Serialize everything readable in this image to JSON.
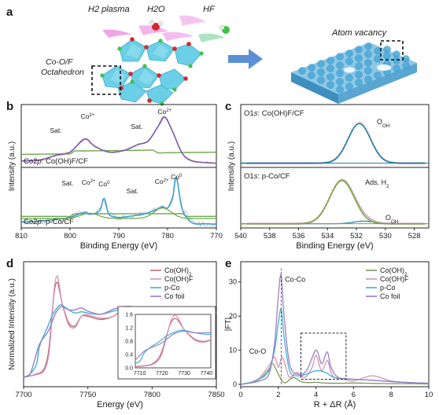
{
  "panel_a": {
    "letter": "a",
    "labels": {
      "plasma": "H2 plasma",
      "h2o": "H2O",
      "hf": "HF",
      "octa_line1": "Co-O/F",
      "octa_line2": "Octahedron",
      "vacancy": "Atom vacancy"
    },
    "colors": {
      "octahedron": "#5ecbe6",
      "oxygen": "#d7262b",
      "fluorine": "#3ec24b",
      "sphere": "#4aa9da",
      "arrow": "#5b8fd6",
      "plasma": "#e35ad3",
      "hf": "#47c47a"
    }
  },
  "chart_data": [
    {
      "panel": "b",
      "type": "line",
      "xlabel": "Binding Energy (eV)",
      "ylabel": "Intensity (a.u.)",
      "xlim": [
        810,
        770
      ],
      "xticks": [
        810,
        800,
        790,
        780,
        770
      ],
      "subplots": [
        {
          "label_prefix": "Co2",
          "label_italic": "p",
          "label_suffix": ": Co(OH)F/CF",
          "peak_labels": [
            "Sat.",
            "Co",
            "Sat.",
            "Co"
          ],
          "peak_sups": [
            "",
            "2+",
            "",
            "2+"
          ],
          "peak_positions": [
            802.9,
            796.4,
            786.3,
            780.6
          ],
          "series": [
            {
              "name": "fit",
              "color": "#7e58a8",
              "x": [
                810,
                806,
                803,
                800,
                797,
                795,
                792,
                789,
                786,
                784,
                782,
                780.6,
                779,
                777,
                775,
                772,
                770
              ],
              "y": [
                0.06,
                0.08,
                0.16,
                0.22,
                0.46,
                0.33,
                0.22,
                0.25,
                0.36,
                0.42,
                0.68,
                0.86,
                0.6,
                0.2,
                0.06,
                0.03,
                0.02
              ]
            }
          ]
        },
        {
          "label_prefix": "Co2",
          "label_italic": "p",
          "label_suffix": ": p-Co/CF",
          "peak_labels": [
            "Sat.",
            "Co",
            "Co",
            "Sat.",
            "Co",
            "Co"
          ],
          "peak_sups": [
            "",
            "2+",
            "0",
            "",
            "2+",
            "0"
          ],
          "peak_positions": [
            800.5,
            796.2,
            793.0,
            787.2,
            781.2,
            778.2
          ],
          "series": [
            {
              "name": "fit",
              "color": "#3b9fd1",
              "x": [
                810,
                806,
                803,
                800,
                797,
                796,
                794,
                793,
                792,
                790,
                788,
                785,
                782,
                781,
                780,
                779,
                778.2,
                777,
                775,
                772,
                770
              ],
              "y": [
                0.05,
                0.07,
                0.1,
                0.14,
                0.24,
                0.2,
                0.26,
                0.5,
                0.2,
                0.14,
                0.16,
                0.2,
                0.3,
                0.34,
                0.32,
                0.5,
                0.9,
                0.3,
                0.04,
                0.02,
                0.01
              ]
            }
          ]
        }
      ]
    },
    {
      "panel": "c",
      "type": "line",
      "xlabel": "Binding Energy (eV)",
      "ylabel": "Intensity (a.u.)",
      "xlim": [
        540,
        527
      ],
      "xticks": [
        540,
        538,
        536,
        534,
        532,
        530,
        528
      ],
      "subplots": [
        {
          "label_prefix": "O1",
          "label_italic": "s",
          "label_suffix": ": Co(OH)F/CF",
          "peak_labels": [
            "O"
          ],
          "peak_subs": [
            "OH"
          ],
          "peak_positions": [
            531.8
          ],
          "series": [
            {
              "name": "fit",
              "color": "#1f7fa0",
              "x": [
                540,
                536,
                534,
                533,
                532,
                531,
                530,
                529,
                528,
                527
              ],
              "y": [
                0.02,
                0.04,
                0.14,
                0.44,
                0.74,
                0.56,
                0.16,
                0.05,
                0.03,
                0.02
              ]
            }
          ]
        },
        {
          "label_prefix": "O1",
          "label_italic": "s",
          "label_suffix": ": p-Co/CF",
          "peak_labels": [
            "Ads. H",
            "O"
          ],
          "peak_subs": [
            "2",
            "OH"
          ],
          "peak_positions": [
            533.0,
            531.5
          ],
          "series": [
            {
              "name": "fit",
              "color": "#7aa63a",
              "x": [
                540,
                536,
                535,
                534,
                533,
                532,
                531,
                530,
                528,
                527
              ],
              "y": [
                0.02,
                0.05,
                0.2,
                0.55,
                0.85,
                0.55,
                0.2,
                0.06,
                0.02,
                0.02
              ]
            }
          ]
        }
      ]
    },
    {
      "panel": "d",
      "type": "line",
      "xlabel": "Energy (eV)",
      "ylabel": "Normalized Intensity (a.u.)",
      "xlim": [
        7700,
        7850
      ],
      "xticks": [
        7700,
        7750,
        7800,
        7850
      ],
      "legend_position": "top-right",
      "series": [
        {
          "name": "Co(OH)",
          "name_sub": "2",
          "color": "#c06b6b",
          "x": [
            7700,
            7705,
            7710,
            7715,
            7718,
            7720,
            7722,
            7724,
            7726,
            7728,
            7730,
            7735,
            7740,
            7745,
            7750,
            7760,
            7770,
            7780,
            7790,
            7800,
            7810,
            7820,
            7830,
            7840,
            7850
          ],
          "y": [
            0.0,
            0.02,
            0.05,
            0.1,
            0.25,
            0.5,
            0.95,
            1.35,
            1.48,
            1.35,
            1.15,
            0.85,
            0.8,
            0.95,
            0.95,
            0.9,
            0.95,
            1.08,
            1.05,
            1.0,
            1.03,
            1.05,
            1.0,
            1.0,
            1.01
          ]
        },
        {
          "name": "Co(OH)F",
          "name_sub": "",
          "color": "#d393b8",
          "x": [
            7700,
            7705,
            7710,
            7715,
            7718,
            7720,
            7722,
            7724,
            7726,
            7728,
            7730,
            7735,
            7740,
            7745,
            7750,
            7760,
            7770,
            7780,
            7790,
            7800,
            7810,
            7820,
            7830,
            7840,
            7850
          ],
          "y": [
            0.0,
            0.02,
            0.04,
            0.08,
            0.2,
            0.42,
            0.9,
            1.4,
            1.58,
            1.4,
            1.15,
            0.82,
            0.78,
            0.95,
            0.97,
            0.92,
            0.95,
            1.1,
            1.06,
            1.0,
            1.04,
            1.05,
            1.0,
            1.0,
            1.01
          ]
        },
        {
          "name": "p-Co",
          "name_sub": "",
          "color": "#3fb0d6",
          "x": [
            7700,
            7705,
            7710,
            7712,
            7715,
            7718,
            7720,
            7722,
            7725,
            7728,
            7730,
            7735,
            7740,
            7745,
            7750,
            7760,
            7770,
            7780,
            7790,
            7800,
            7810,
            7820,
            7830,
            7840,
            7850
          ],
          "y": [
            0.0,
            0.05,
            0.2,
            0.45,
            0.62,
            0.75,
            0.85,
            0.95,
            1.05,
            1.12,
            1.12,
            1.05,
            1.0,
            1.02,
            1.0,
            0.98,
            1.03,
            1.06,
            1.01,
            1.0,
            1.03,
            1.02,
            1.0,
            1.0,
            1.0
          ]
        },
        {
          "name": "Co foil",
          "name_sub": "",
          "color": "#9a7fc4",
          "x": [
            7700,
            7705,
            7709,
            7712,
            7715,
            7718,
            7720,
            7722,
            7725,
            7728,
            7730,
            7735,
            7740,
            7745,
            7750,
            7760,
            7770,
            7780,
            7790,
            7800,
            7810,
            7820,
            7830,
            7840,
            7850
          ],
          "y": [
            0.0,
            0.05,
            0.3,
            0.5,
            0.6,
            0.68,
            0.75,
            0.85,
            1.0,
            1.08,
            1.1,
            1.05,
            1.05,
            1.08,
            1.03,
            0.98,
            1.06,
            1.1,
            1.02,
            0.98,
            1.03,
            1.02,
            1.0,
            1.0,
            1.0
          ]
        }
      ],
      "inset": {
        "xlim": [
          7708,
          7742
        ],
        "ylim": [
          0.0,
          1.6
        ],
        "xticks": [
          7710,
          7720,
          7730,
          7740
        ],
        "yticks": [
          0.0,
          0.4,
          0.8,
          1.2,
          1.6
        ]
      }
    },
    {
      "panel": "e",
      "type": "line",
      "xlabel": "R + ΔR (Å)",
      "ylabel": "|FT|",
      "xlim": [
        0,
        10
      ],
      "ylim": [
        0,
        35
      ],
      "xticks": [
        0,
        2,
        4,
        6,
        8,
        10
      ],
      "yticks": [
        0,
        10,
        20,
        30
      ],
      "legend_position": "top-right",
      "annotations": [
        "Co-Co",
        "Co-O"
      ],
      "series": [
        {
          "name": "Co(OH)",
          "name_sub": "2",
          "color": "#7a9a5a",
          "x": [
            0,
            0.5,
            1.0,
            1.5,
            1.7,
            2.0,
            2.2,
            2.4,
            2.8,
            3.2,
            3.6,
            4.0,
            4.4,
            5.0,
            6.0,
            7.0,
            8.0,
            9.0,
            10.0
          ],
          "y": [
            0,
            0.5,
            1.5,
            4.5,
            6.0,
            3.0,
            1.0,
            0.5,
            2.0,
            0.8,
            0.5,
            0.6,
            0.4,
            0.3,
            0.4,
            0.3,
            0.2,
            0.2,
            0.1
          ]
        },
        {
          "name": "Co(OH)F",
          "name_sub": "",
          "color": "#d393b8",
          "x": [
            0,
            0.5,
            1.0,
            1.5,
            1.8,
            2.0,
            2.2,
            2.4,
            2.6,
            3.0,
            3.4,
            3.8,
            4.0,
            4.3,
            4.6,
            4.8,
            5.0,
            5.5,
            6.0,
            7.0,
            8.0,
            9.0,
            10.0
          ],
          "y": [
            0,
            0.5,
            2.0,
            5.5,
            8.0,
            5.0,
            8.0,
            5.0,
            2.0,
            3.5,
            2.0,
            5.0,
            8.5,
            4.0,
            7.0,
            3.5,
            2.0,
            1.5,
            1.0,
            2.5,
            1.0,
            0.5,
            0.3
          ]
        },
        {
          "name": "p-Co",
          "name_sub": "",
          "color": "#3fb0d6",
          "x": [
            0,
            0.5,
            1.0,
            1.5,
            1.8,
            2.0,
            2.15,
            2.3,
            2.6,
            3.0,
            3.5,
            4.0,
            4.5,
            5.0,
            6.0,
            7.0,
            8.0,
            9.0,
            10.0
          ],
          "y": [
            0,
            0.5,
            1.5,
            4.0,
            10.0,
            18.0,
            22.0,
            14.0,
            4.0,
            2.5,
            3.0,
            4.0,
            3.5,
            2.0,
            1.5,
            1.2,
            0.8,
            0.5,
            0.3
          ]
        },
        {
          "name": "Co foil",
          "name_sub": "",
          "color": "#9a7fc4",
          "x": [
            0,
            0.5,
            1.0,
            1.5,
            1.8,
            2.0,
            2.15,
            2.3,
            2.6,
            3.0,
            3.5,
            4.0,
            4.3,
            4.6,
            4.8,
            5.2,
            6.0,
            7.0,
            8.0,
            9.0,
            10.0
          ],
          "y": [
            0,
            0.4,
            1.0,
            3.0,
            12.0,
            26.0,
            32.0,
            20.0,
            6.0,
            3.0,
            4.0,
            10.0,
            6.0,
            9.5,
            5.0,
            2.0,
            1.5,
            1.2,
            0.8,
            0.5,
            0.3
          ]
        }
      ]
    }
  ],
  "panel_letters": {
    "b": "b",
    "c": "c",
    "d": "d",
    "e": "e"
  }
}
